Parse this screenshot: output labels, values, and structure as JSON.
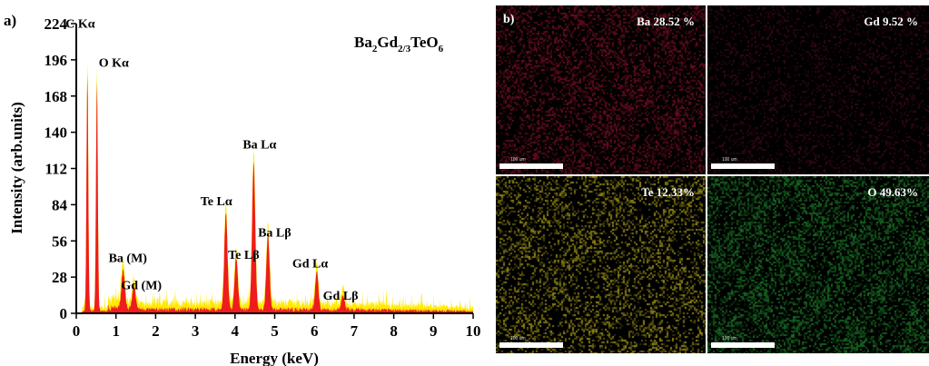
{
  "panel_a_label": "a)",
  "panel_b_label": "b)",
  "formula": {
    "p1": "Ba",
    "s1": "2",
    "p2": "Gd",
    "s2": "2/3",
    "p3": "TeO",
    "s3": "6"
  },
  "chart_data": {
    "type": "area",
    "xlabel": "Energy (keV)",
    "ylabel": "Intensity (arb.units)",
    "xlim": [
      0,
      10
    ],
    "ylim": [
      0,
      224
    ],
    "xticks": [
      0,
      1,
      2,
      3,
      4,
      5,
      6,
      7,
      8,
      9,
      10
    ],
    "yticks": [
      0,
      28,
      56,
      84,
      112,
      140,
      168,
      196,
      224
    ],
    "colors": {
      "fill": "#ee1c1c",
      "outline": "#ffea00"
    },
    "peaks": [
      {
        "x": 0.28,
        "y": 190,
        "label": "C Kα"
      },
      {
        "x": 0.52,
        "y": 183,
        "label": "O Kα"
      },
      {
        "x": 1.18,
        "y": 32,
        "label": "Ba (M)"
      },
      {
        "x": 1.45,
        "y": 20,
        "label": "Gd (M)"
      },
      {
        "x": 3.77,
        "y": 78,
        "label": "Te Lα"
      },
      {
        "x": 4.03,
        "y": 42,
        "label": "Te Lβ"
      },
      {
        "x": 4.47,
        "y": 117,
        "label": "Ba Lα"
      },
      {
        "x": 4.83,
        "y": 60,
        "label": "Ba Lβ"
      },
      {
        "x": 6.06,
        "y": 30,
        "label": "Gd Lα"
      },
      {
        "x": 6.72,
        "y": 12,
        "label": "Gd Lβ"
      }
    ]
  },
  "maps": [
    {
      "label": "Ba 28.52 %",
      "color": "#c2183a",
      "scale": "100 um"
    },
    {
      "label": "Gd 9.52 %",
      "color": "#9b1846",
      "scale": "100 um"
    },
    {
      "label": "Te 12.33%",
      "color": "#d2c41e",
      "scale": "100 um"
    },
    {
      "label": "O 49.63%",
      "color": "#28b43a",
      "scale": "100 um"
    }
  ]
}
